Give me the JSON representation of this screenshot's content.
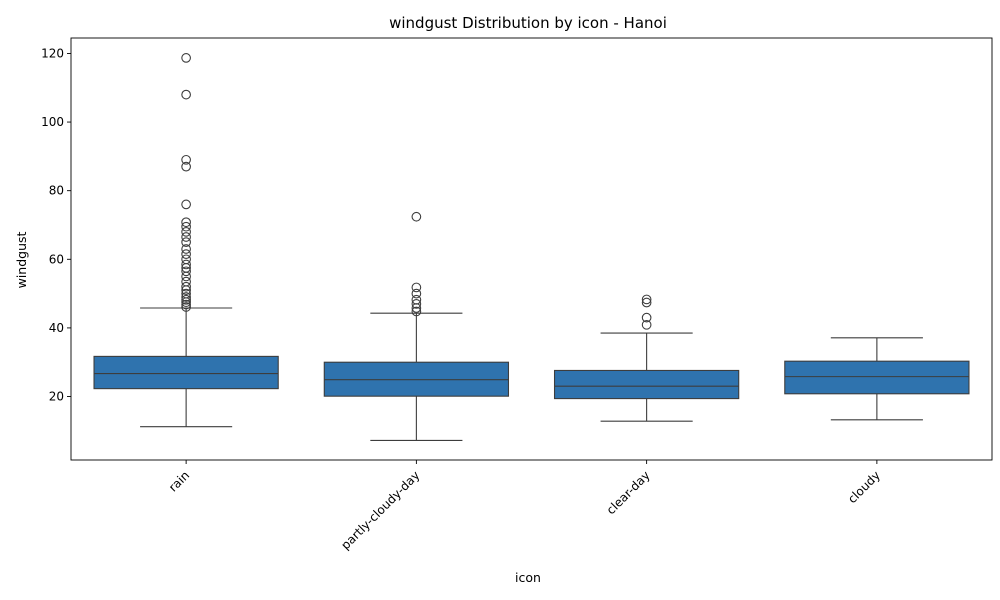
{
  "chart_data": {
    "type": "box",
    "title": "windgust Distribution by icon - Hanoi",
    "xlabel": "icon",
    "ylabel": "windgust",
    "ylim": [
      1.5,
      124.5
    ],
    "yticks": [
      20,
      40,
      60,
      80,
      100,
      120
    ],
    "grid": false,
    "color": "#2f73ae",
    "edge_color": "#3d3d3d",
    "categories": [
      "rain",
      "partly-cloudy-day",
      "clear-day",
      "cloudy"
    ],
    "boxes": [
      {
        "category": "rain",
        "whisker_low": 11.2,
        "q1": 22.3,
        "median": 26.7,
        "q3": 31.7,
        "whisker_high": 45.8,
        "outliers": [
          46.1,
          46.8,
          47.5,
          48.2,
          49.0,
          50.0,
          51.0,
          52.0,
          53.5,
          55.0,
          56.5,
          57.5,
          58.5,
          60.0,
          61.5,
          63.0,
          65.0,
          66.5,
          68.0,
          69.5,
          70.8,
          76.0,
          87.0,
          89.0,
          108.0,
          118.7
        ]
      },
      {
        "category": "partly-cloudy-day",
        "whisker_low": 7.2,
        "q1": 20.1,
        "median": 24.9,
        "q3": 30.0,
        "whisker_high": 44.3,
        "outliers": [
          44.8,
          45.8,
          47.0,
          48.2,
          50.0,
          51.8,
          72.4
        ]
      },
      {
        "category": "clear-day",
        "whisker_low": 12.8,
        "q1": 19.4,
        "median": 23.0,
        "q3": 27.6,
        "whisker_high": 38.5,
        "outliers": [
          40.9,
          43.0,
          47.4,
          48.3
        ]
      },
      {
        "category": "cloudy",
        "whisker_low": 13.2,
        "q1": 20.8,
        "median": 25.8,
        "q3": 30.3,
        "whisker_high": 37.1,
        "outliers": []
      }
    ]
  }
}
